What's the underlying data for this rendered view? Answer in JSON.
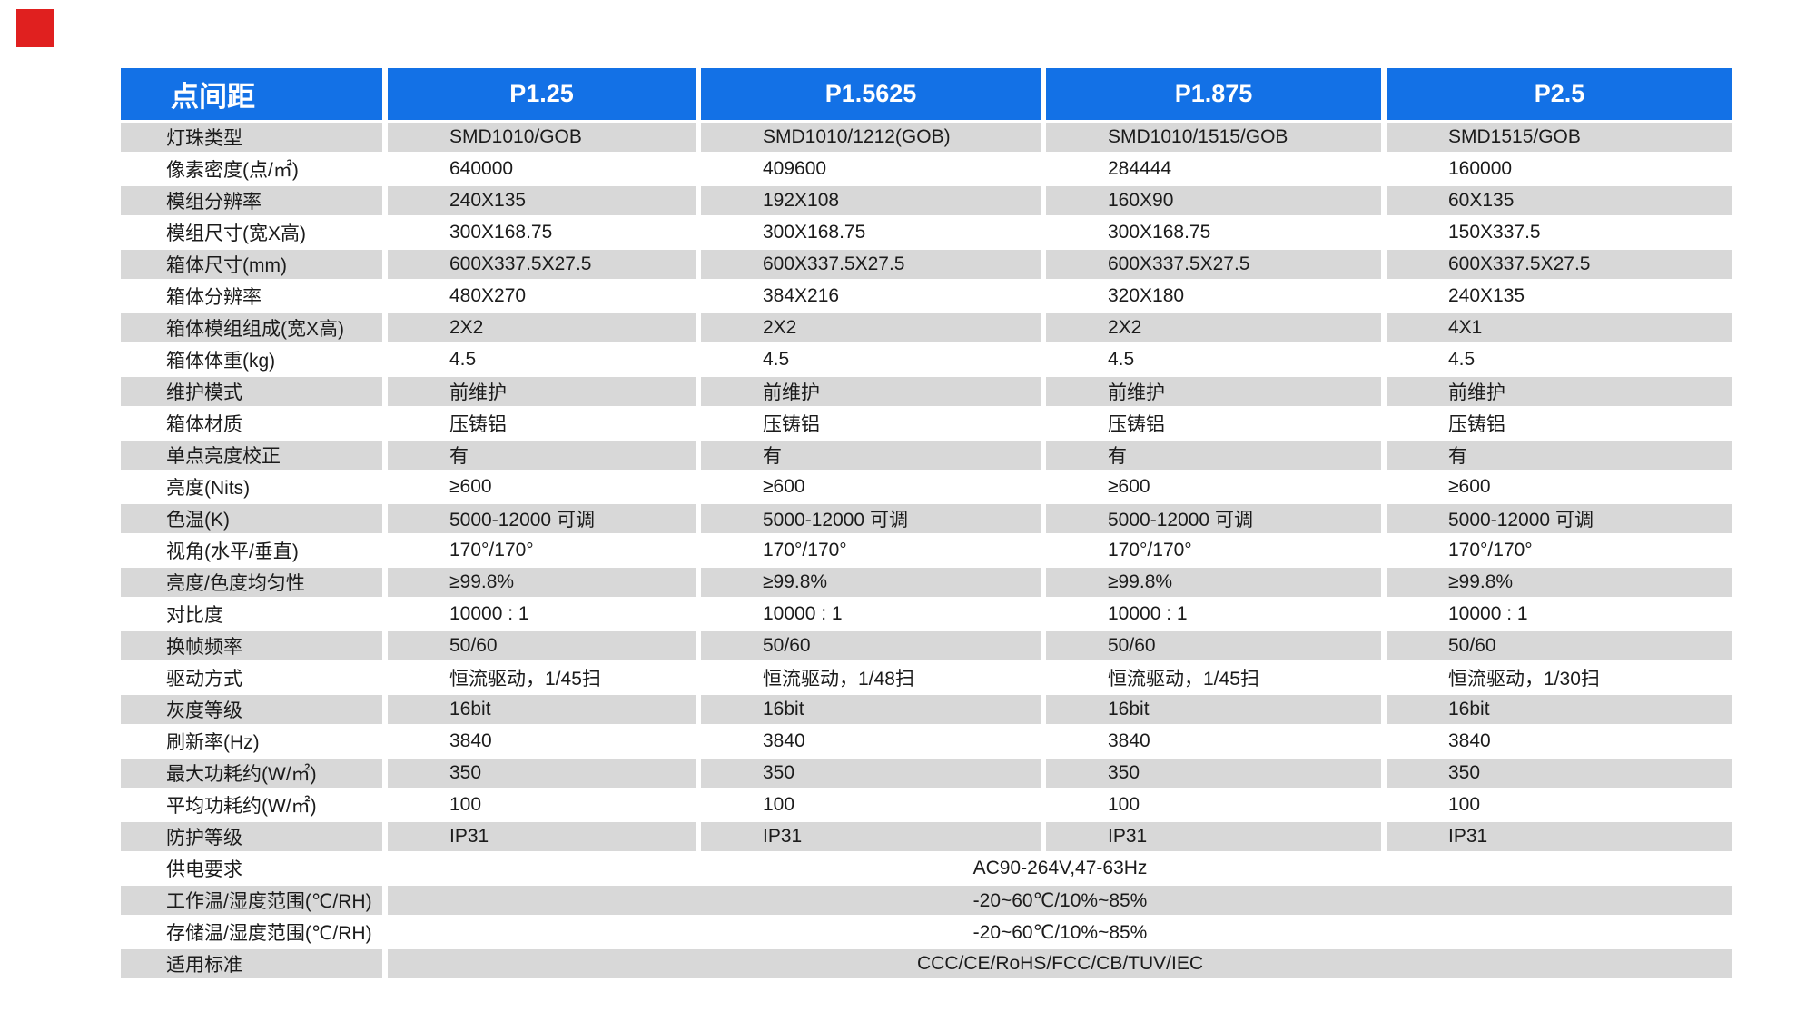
{
  "colors": {
    "header_blue": "#1371e6",
    "row_gray": "#d8d8d8",
    "marker_red": "#e0201f",
    "header_text": "#ffffff",
    "body_text": "#1b1b1b"
  },
  "marker": {
    "name": "red-square-marker"
  },
  "table": {
    "header": {
      "label": "点间距",
      "columns": [
        "P1.25",
        "P1.5625",
        "P1.875",
        "P2.5"
      ]
    },
    "rows": [
      {
        "label": "灯珠类型",
        "values": [
          "SMD1010/GOB",
          "SMD1010/1212(GOB)",
          "SMD1010/1515/GOB",
          "SMD1515/GOB"
        ]
      },
      {
        "label": "像素密度(点/㎡)",
        "values": [
          "640000",
          "409600",
          "284444",
          "160000"
        ]
      },
      {
        "label": "模组分辨率",
        "values": [
          "240X135",
          "192X108",
          "160X90",
          "60X135"
        ]
      },
      {
        "label": "模组尺寸(宽X高)",
        "values": [
          "300X168.75",
          "300X168.75",
          "300X168.75",
          "150X337.5"
        ]
      },
      {
        "label": "箱体尺寸(mm)",
        "values": [
          "600X337.5X27.5",
          "600X337.5X27.5",
          "600X337.5X27.5",
          "600X337.5X27.5"
        ]
      },
      {
        "label": "箱体分辨率",
        "values": [
          "480X270",
          "384X216",
          "320X180",
          "240X135"
        ]
      },
      {
        "label": "箱体模组组成(宽X高)",
        "values": [
          "2X2",
          "2X2",
          "2X2",
          "4X1"
        ]
      },
      {
        "label": "箱体体重(kg)",
        "values": [
          "4.5",
          "4.5",
          "4.5",
          "4.5"
        ]
      },
      {
        "label": "维护模式",
        "values": [
          "前维护",
          "前维护",
          "前维护",
          "前维护"
        ]
      },
      {
        "label": "箱体材质",
        "values": [
          "压铸铝",
          "压铸铝",
          "压铸铝",
          "压铸铝"
        ]
      },
      {
        "label": "单点亮度校正",
        "values": [
          "有",
          "有",
          "有",
          "有"
        ]
      },
      {
        "label": "亮度(Nits)",
        "values": [
          "≥600",
          "≥600",
          "≥600",
          "≥600"
        ]
      },
      {
        "label": "色温(K)",
        "values": [
          "5000-12000 可调",
          "5000-12000 可调",
          "5000-12000 可调",
          "5000-12000 可调"
        ]
      },
      {
        "label": "视角(水平/垂直)",
        "values": [
          "170°/170°",
          "170°/170°",
          "170°/170°",
          "170°/170°"
        ]
      },
      {
        "label": "亮度/色度均匀性",
        "values": [
          "≥99.8%",
          "≥99.8%",
          "≥99.8%",
          "≥99.8%"
        ]
      },
      {
        "label": "对比度",
        "values": [
          "10000 : 1",
          "10000 : 1",
          "10000 : 1",
          "10000 : 1"
        ]
      },
      {
        "label": "换帧频率",
        "values": [
          "50/60",
          "50/60",
          "50/60",
          "50/60"
        ]
      },
      {
        "label": "驱动方式",
        "values": [
          "恒流驱动，1/45扫",
          "恒流驱动，1/48扫",
          "恒流驱动，1/45扫",
          "恒流驱动，1/30扫"
        ]
      },
      {
        "label": "灰度等级",
        "values": [
          "16bit",
          "16bit",
          "16bit",
          "16bit"
        ]
      },
      {
        "label": "刷新率(Hz)",
        "values": [
          "3840",
          "3840",
          "3840",
          "3840"
        ]
      },
      {
        "label": "最大功耗约(W/㎡)",
        "values": [
          "350",
          "350",
          "350",
          "350"
        ]
      },
      {
        "label": "平均功耗约(W/㎡)",
        "values": [
          "100",
          "100",
          "100",
          "100"
        ]
      },
      {
        "label": "防护等级",
        "values": [
          "IP31",
          "IP31",
          "IP31",
          "IP31"
        ]
      },
      {
        "label": "供电要求",
        "span": "AC90-264V,47-63Hz"
      },
      {
        "label": "工作温/湿度范围(℃/RH)",
        "span": "-20~60℃/10%~85%"
      },
      {
        "label": "存储温/湿度范围(℃/RH)",
        "span": "-20~60℃/10%~85%"
      },
      {
        "label": "适用标准",
        "span": "CCC/CE/RoHS/FCC/CB/TUV/IEC"
      }
    ]
  }
}
